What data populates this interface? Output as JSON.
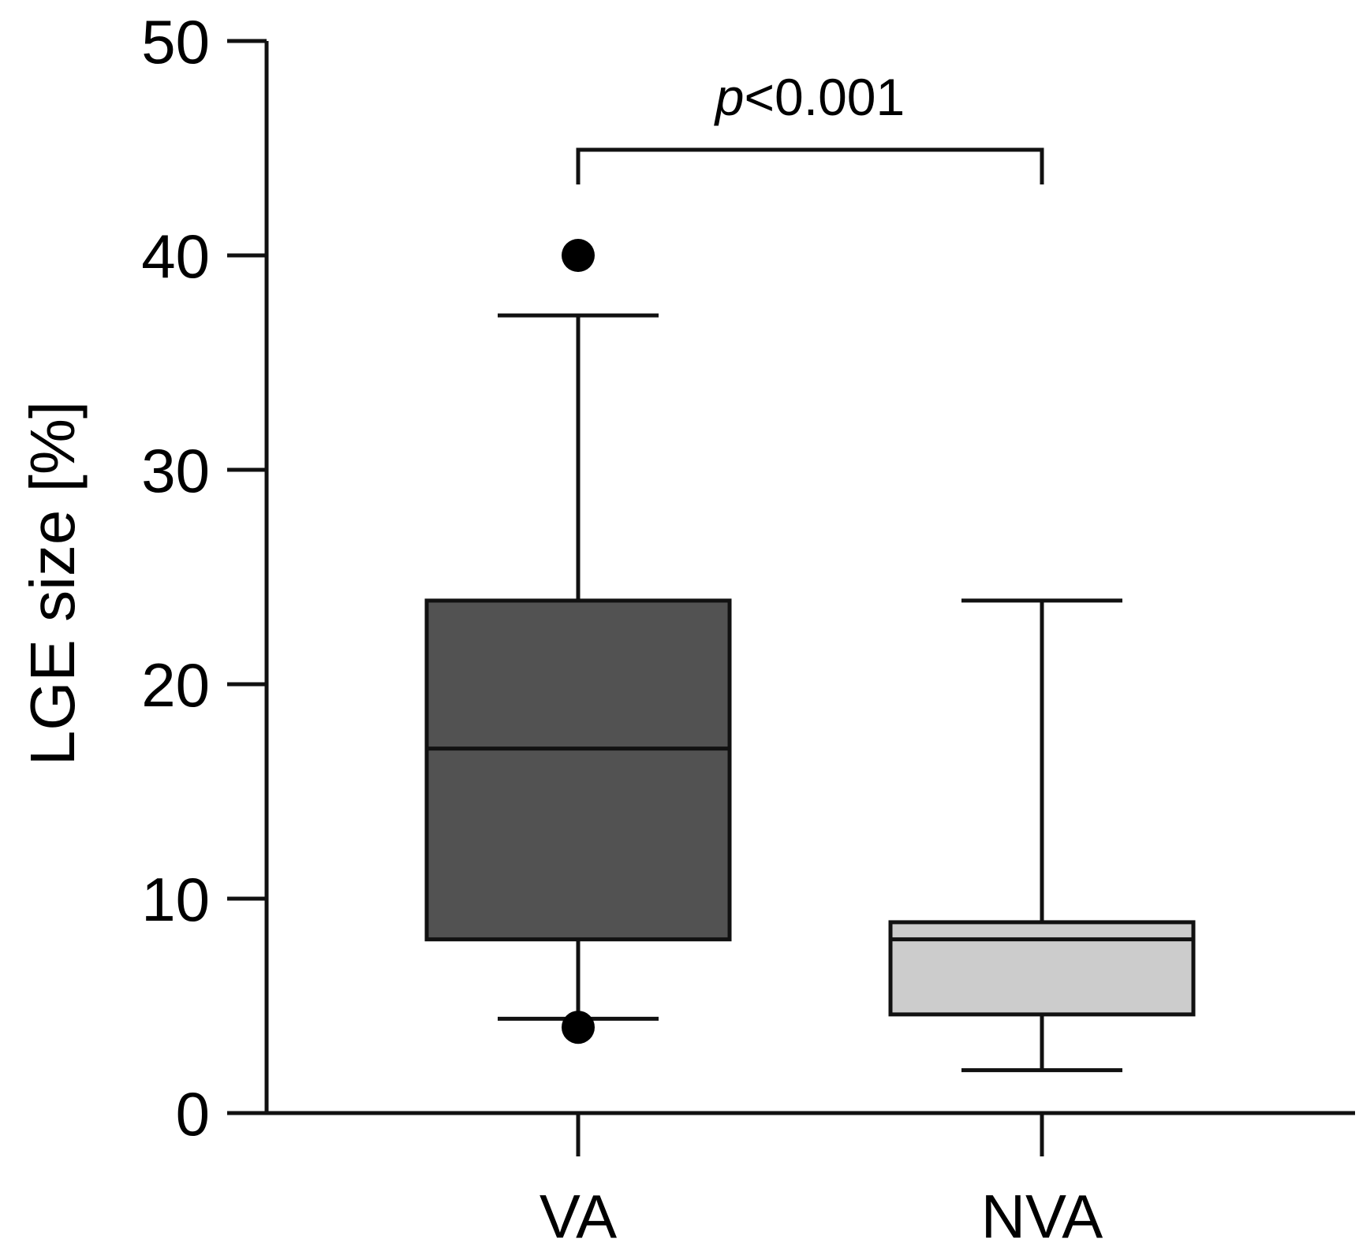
{
  "chart_data": {
    "type": "box",
    "title": "",
    "xlabel": "",
    "ylabel": "LGE size [%]",
    "ylim": [
      0,
      50
    ],
    "yticks": [
      0,
      10,
      20,
      30,
      40,
      50
    ],
    "ytick_labels": [
      "0",
      "10",
      "20",
      "30",
      "40",
      "50"
    ],
    "grid": false,
    "categories": [
      "VA",
      "NVA"
    ],
    "series": [
      {
        "name": "VA",
        "whisker_low": 4.4,
        "q1": 8.1,
        "median": 17.0,
        "q3": 23.9,
        "whisker_high": 37.2,
        "outliers": [
          40.0,
          4.0
        ],
        "color": "#525252"
      },
      {
        "name": "NVA",
        "whisker_low": 2.0,
        "q1": 4.6,
        "median": 8.1,
        "q3": 8.9,
        "whisker_high": 23.9,
        "outliers": [],
        "color": "#cccccc"
      }
    ],
    "annotations": [
      {
        "text_prefix": "p",
        "text_suffix": "<0.001",
        "between": [
          "VA",
          "NVA"
        ]
      }
    ]
  }
}
